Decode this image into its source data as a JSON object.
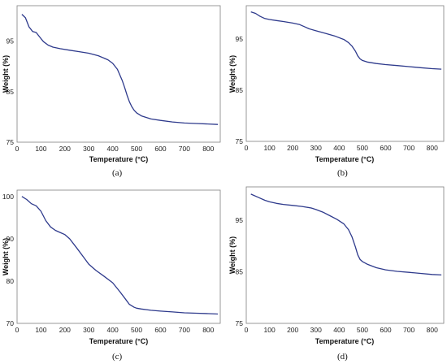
{
  "figure": {
    "colors": {
      "curve": "#2e3a8c",
      "frame": "#7f7f7f"
    }
  },
  "chart_data": [
    {
      "type": "line",
      "panel_label": "(a)",
      "xlabel": "Temperature (°C)",
      "ylabel": "Weight (%)",
      "xlim": [
        0,
        850
      ],
      "ylim": [
        75,
        102
      ],
      "xticks": [
        0,
        100,
        200,
        300,
        400,
        500,
        600,
        700,
        800
      ],
      "yticks": [
        75,
        85,
        95
      ],
      "series": [
        {
          "x": [
            20,
            35,
            50,
            65,
            80,
            95,
            110,
            130,
            150,
            180,
            220,
            260,
            300,
            340,
            380,
            400,
            420,
            440,
            450,
            460,
            470,
            480,
            490,
            500,
            520,
            560,
            600,
            650,
            700,
            750,
            800,
            840
          ],
          "y": [
            100.3,
            99.6,
            97.8,
            96.9,
            96.7,
            95.8,
            94.9,
            94.2,
            93.8,
            93.5,
            93.2,
            92.9,
            92.6,
            92.1,
            91.3,
            90.6,
            89.4,
            87.2,
            85.8,
            84.3,
            83.0,
            82.0,
            81.3,
            80.8,
            80.2,
            79.6,
            79.3,
            79.0,
            78.8,
            78.7,
            78.6,
            78.5
          ]
        }
      ]
    },
    {
      "type": "line",
      "panel_label": "(b)",
      "xlabel": "Temperature (°C)",
      "ylabel": "Weight (%)",
      "xlim": [
        0,
        850
      ],
      "ylim": [
        75,
        101.5
      ],
      "xticks": [
        0,
        100,
        200,
        300,
        400,
        500,
        600,
        700,
        800
      ],
      "yticks": [
        75,
        85,
        95
      ],
      "series": [
        {
          "x": [
            20,
            40,
            60,
            80,
            100,
            130,
            160,
            200,
            230,
            250,
            270,
            300,
            340,
            380,
            420,
            440,
            455,
            470,
            480,
            490,
            500,
            520,
            560,
            600,
            650,
            700,
            750,
            800,
            840
          ],
          "y": [
            100.3,
            100.0,
            99.4,
            99.0,
            98.8,
            98.6,
            98.4,
            98.1,
            97.8,
            97.4,
            97.0,
            96.6,
            96.1,
            95.6,
            94.9,
            94.3,
            93.6,
            92.6,
            91.7,
            91.1,
            90.8,
            90.5,
            90.2,
            90.0,
            89.8,
            89.6,
            89.4,
            89.2,
            89.1
          ]
        }
      ]
    },
    {
      "type": "line",
      "panel_label": "(c)",
      "xlabel": "Temperature (°C)",
      "ylabel": "Weight (%)",
      "xlim": [
        0,
        850
      ],
      "ylim": [
        70,
        101.5
      ],
      "xticks": [
        0,
        100,
        200,
        300,
        400,
        500,
        600,
        700,
        800
      ],
      "yticks": [
        70,
        80,
        90,
        100
      ],
      "series": [
        {
          "x": [
            20,
            40,
            60,
            80,
            100,
            120,
            140,
            160,
            180,
            200,
            220,
            250,
            280,
            300,
            330,
            360,
            400,
            430,
            450,
            470,
            490,
            500,
            520,
            560,
            600,
            650,
            700,
            750,
            800,
            840
          ],
          "y": [
            100.0,
            99.3,
            98.3,
            97.8,
            96.5,
            94.3,
            92.8,
            92.0,
            91.5,
            91.0,
            90.0,
            87.8,
            85.5,
            84.0,
            82.5,
            81.3,
            79.6,
            77.5,
            76.0,
            74.5,
            73.8,
            73.6,
            73.4,
            73.1,
            72.9,
            72.7,
            72.5,
            72.4,
            72.3,
            72.2
          ]
        }
      ]
    },
    {
      "type": "line",
      "panel_label": "(d)",
      "xlabel": "Temperature (°C)",
      "ylabel": "Weight (%)",
      "xlim": [
        0,
        850
      ],
      "ylim": [
        75,
        101.5
      ],
      "xticks": [
        0,
        100,
        200,
        300,
        400,
        500,
        600,
        700,
        800
      ],
      "yticks": [
        75,
        85,
        95
      ],
      "series": [
        {
          "x": [
            20,
            50,
            80,
            100,
            130,
            160,
            200,
            240,
            280,
            300,
            330,
            360,
            390,
            420,
            440,
            455,
            470,
            480,
            490,
            500,
            520,
            560,
            600,
            650,
            700,
            750,
            800,
            840
          ],
          "y": [
            100.1,
            99.5,
            98.9,
            98.6,
            98.3,
            98.1,
            97.9,
            97.7,
            97.4,
            97.1,
            96.6,
            95.9,
            95.2,
            94.3,
            93.2,
            91.8,
            89.8,
            88.3,
            87.4,
            87.0,
            86.5,
            85.8,
            85.4,
            85.1,
            84.9,
            84.7,
            84.5,
            84.4
          ]
        }
      ]
    }
  ]
}
